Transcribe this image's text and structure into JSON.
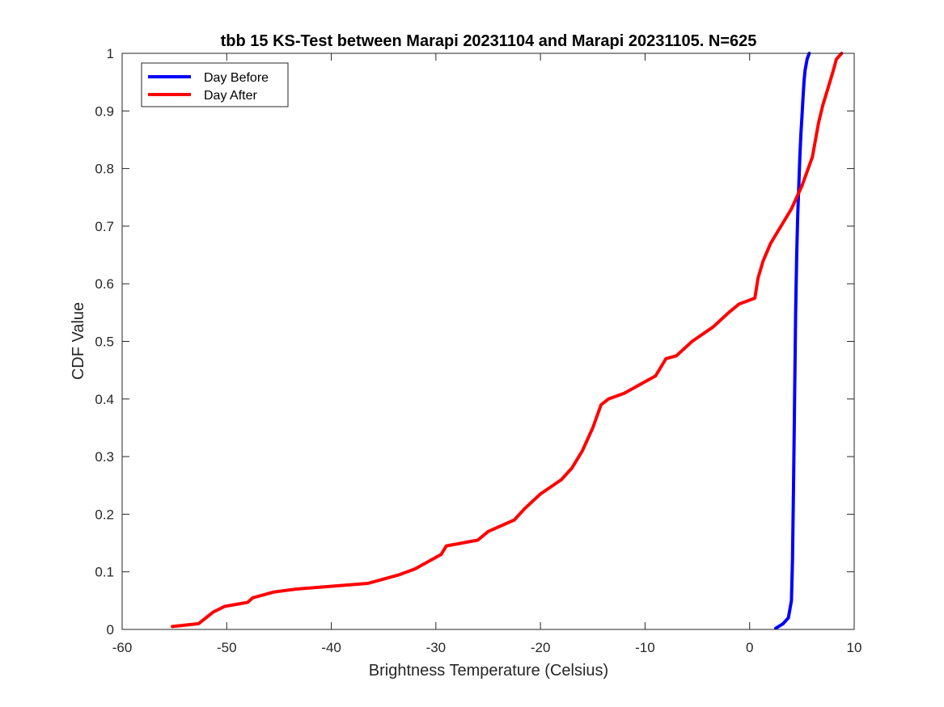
{
  "chart_data": {
    "type": "line",
    "title": "tbb 15 KS-Test between Marapi 20231104 and Marapi 20231105. N=625",
    "xlabel": "Brightness Temperature (Celsius)",
    "ylabel": "CDF Value",
    "xlim": [
      -60,
      10
    ],
    "ylim": [
      0,
      1
    ],
    "xticks": [
      -60,
      -50,
      -40,
      -30,
      -20,
      -10,
      0,
      10
    ],
    "yticks": [
      0,
      0.1,
      0.2,
      0.3,
      0.4,
      0.5,
      0.6,
      0.7,
      0.8,
      0.9,
      1
    ],
    "xtick_labels": [
      "-60",
      "-50",
      "-40",
      "-30",
      "-20",
      "-10",
      "0",
      "10"
    ],
    "ytick_labels": [
      "0",
      "0.1",
      "0.2",
      "0.3",
      "0.4",
      "0.5",
      "0.6",
      "0.7",
      "0.8",
      "0.9",
      "1"
    ],
    "grid": false,
    "legend_position": "top-left",
    "series": [
      {
        "name": "Day Before",
        "color": "#0000ff",
        "x": [
          2.5,
          3.2,
          3.7,
          4.0,
          4.1,
          4.2,
          4.3,
          4.4,
          4.5,
          4.6,
          4.7,
          4.8,
          4.9,
          5.0,
          5.1,
          5.2,
          5.3,
          5.5,
          5.7
        ],
        "y": [
          0.002,
          0.01,
          0.02,
          0.05,
          0.12,
          0.25,
          0.4,
          0.55,
          0.65,
          0.72,
          0.77,
          0.82,
          0.86,
          0.89,
          0.92,
          0.95,
          0.97,
          0.99,
          1.0
        ]
      },
      {
        "name": "Day After",
        "color": "#ff0000",
        "x": [
          -55.2,
          -52.7,
          -51.3,
          -50.2,
          -48.0,
          -47.5,
          -45.5,
          -43.4,
          -36.5,
          -35.5,
          -33.5,
          -32.0,
          -30.5,
          -29.5,
          -29.0,
          -26.0,
          -25.0,
          -22.5,
          -21.5,
          -20.0,
          -18.0,
          -17.0,
          -16.0,
          -15.0,
          -14.2,
          -13.5,
          -12.0,
          -10.5,
          -9.0,
          -8.0,
          -7.0,
          -5.5,
          -3.5,
          -2.0,
          -1.0,
          0.5,
          0.8,
          1.3,
          2.0,
          3.0,
          4.0,
          5.0,
          6.0,
          6.6,
          7.0,
          7.5,
          8.0,
          8.3,
          8.8
        ],
        "y": [
          0.005,
          0.01,
          0.03,
          0.04,
          0.047,
          0.055,
          0.065,
          0.07,
          0.08,
          0.085,
          0.095,
          0.105,
          0.12,
          0.13,
          0.145,
          0.155,
          0.17,
          0.19,
          0.21,
          0.235,
          0.26,
          0.28,
          0.31,
          0.35,
          0.39,
          0.4,
          0.41,
          0.425,
          0.44,
          0.47,
          0.475,
          0.5,
          0.525,
          0.55,
          0.565,
          0.575,
          0.61,
          0.64,
          0.67,
          0.7,
          0.73,
          0.77,
          0.82,
          0.88,
          0.91,
          0.94,
          0.97,
          0.99,
          1.0
        ]
      }
    ]
  }
}
